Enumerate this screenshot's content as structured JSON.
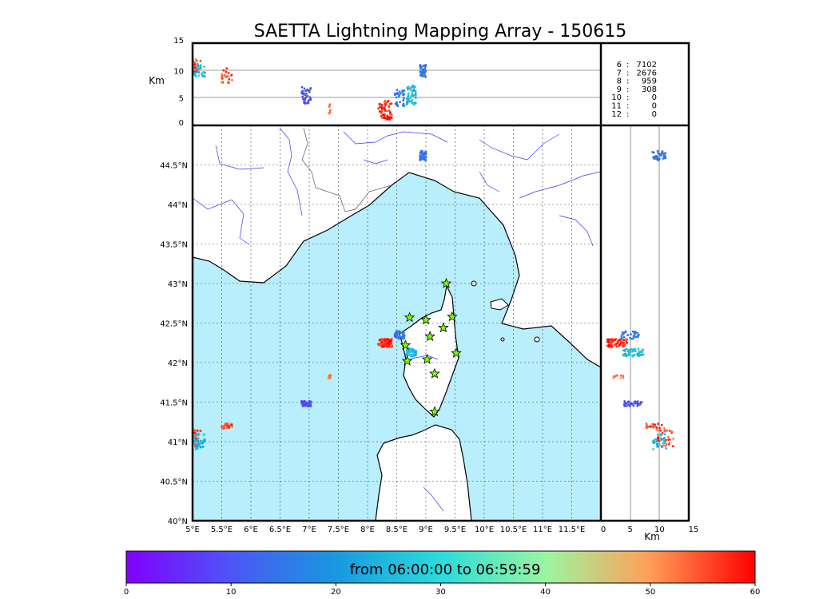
{
  "chart_data": {
    "type": "scatter",
    "title": "SAETTA Lightning Mapping Array - 150615",
    "colors": {
      "sea": "#b9eefc",
      "land": "#ffffff",
      "river": "#3a3aee",
      "coast": "#000000",
      "station": "#7cfc00"
    },
    "map": {
      "xlim": [
        5,
        12
      ],
      "ylim": [
        40,
        45
      ],
      "xticks": [
        "5°E",
        "5.5°E",
        "6°E",
        "6.5°E",
        "7°E",
        "7.5°E",
        "8°E",
        "8.5°E",
        "9°E",
        "9.5°E",
        "10°E",
        "10.5°E",
        "11°E",
        "11.5°E"
      ],
      "yticks": [
        "40°N",
        "40.5°N",
        "41°N",
        "41.5°N",
        "42°N",
        "42.5°N",
        "43°N",
        "43.5°N",
        "44°N",
        "44.5°N"
      ],
      "stations": [
        [
          9.35,
          43.0
        ],
        [
          8.72,
          42.57
        ],
        [
          9.0,
          42.54
        ],
        [
          9.45,
          42.58
        ],
        [
          9.3,
          42.44
        ],
        [
          9.07,
          42.33
        ],
        [
          8.65,
          42.22
        ],
        [
          8.68,
          42.02
        ],
        [
          9.02,
          42.04
        ],
        [
          9.52,
          42.12
        ],
        [
          9.15,
          41.86
        ],
        [
          9.15,
          41.38
        ]
      ]
    },
    "altitude_panel": {
      "ylabel": "Km",
      "ylim": [
        0,
        15
      ],
      "yticks": [
        "0",
        "5",
        "10",
        "15"
      ]
    },
    "side_panel": {
      "xlabel": "Km",
      "xlim": [
        0,
        15
      ],
      "xticks": [
        "0",
        "5",
        "10",
        "15"
      ]
    },
    "station_counts": [
      {
        "stations": "6",
        "count": "7102",
        "color": "#000000"
      },
      {
        "stations": "7",
        "count": "2676",
        "color": "#ff0000"
      },
      {
        "stations": "8",
        "count": "959",
        "color": "#000000"
      },
      {
        "stations": "9",
        "count": "308",
        "color": "#000000"
      },
      {
        "stations": "10",
        "count": "0",
        "color": "#000000"
      },
      {
        "stations": "11",
        "count": "0",
        "color": "#000000"
      },
      {
        "stations": "12",
        "count": "0",
        "color": "#000000"
      }
    ],
    "colorbar": {
      "label": "from 06:00:00 to 06:59:59",
      "range": [
        0,
        60
      ],
      "ticks": [
        "0",
        "10",
        "20",
        "30",
        "40",
        "50",
        "60"
      ],
      "colormap": "rainbow"
    },
    "sources": [
      {
        "lon": 5.05,
        "lat": 41.05,
        "alt": 11,
        "t": 55,
        "n": 40,
        "dlon": 0.1,
        "dlat": 0.12,
        "dalt": 1.5
      },
      {
        "lon": 5.1,
        "lat": 41.0,
        "alt": 10,
        "t": 25,
        "n": 30,
        "dlon": 0.12,
        "dlat": 0.1,
        "dalt": 1.2
      },
      {
        "lon": 5.6,
        "lat": 41.2,
        "alt": 9,
        "t": 55,
        "n": 25,
        "dlon": 0.1,
        "dlat": 0.03,
        "dalt": 1.5
      },
      {
        "lon": 6.95,
        "lat": 41.48,
        "alt": 5.5,
        "t": 10,
        "n": 40,
        "dlon": 0.08,
        "dlat": 0.03,
        "dalt": 1.5
      },
      {
        "lon": 7.35,
        "lat": 41.82,
        "alt": 3,
        "t": 52,
        "n": 10,
        "dlon": 0.02,
        "dlat": 0.02,
        "dalt": 1
      },
      {
        "lon": 8.3,
        "lat": 42.25,
        "alt": 2.8,
        "t": 58,
        "n": 60,
        "dlon": 0.12,
        "dlat": 0.05,
        "dalt": 1.8
      },
      {
        "lon": 8.55,
        "lat": 42.35,
        "alt": 5,
        "t": 15,
        "n": 30,
        "dlon": 0.08,
        "dlat": 0.05,
        "dalt": 1.5
      },
      {
        "lon": 8.75,
        "lat": 42.13,
        "alt": 5.5,
        "t": 25,
        "n": 50,
        "dlon": 0.08,
        "dlat": 0.05,
        "dalt": 1.8
      },
      {
        "lon": 8.95,
        "lat": 44.62,
        "alt": 10,
        "t": 15,
        "n": 35,
        "dlon": 0.05,
        "dlat": 0.06,
        "dalt": 1.2
      }
    ]
  }
}
